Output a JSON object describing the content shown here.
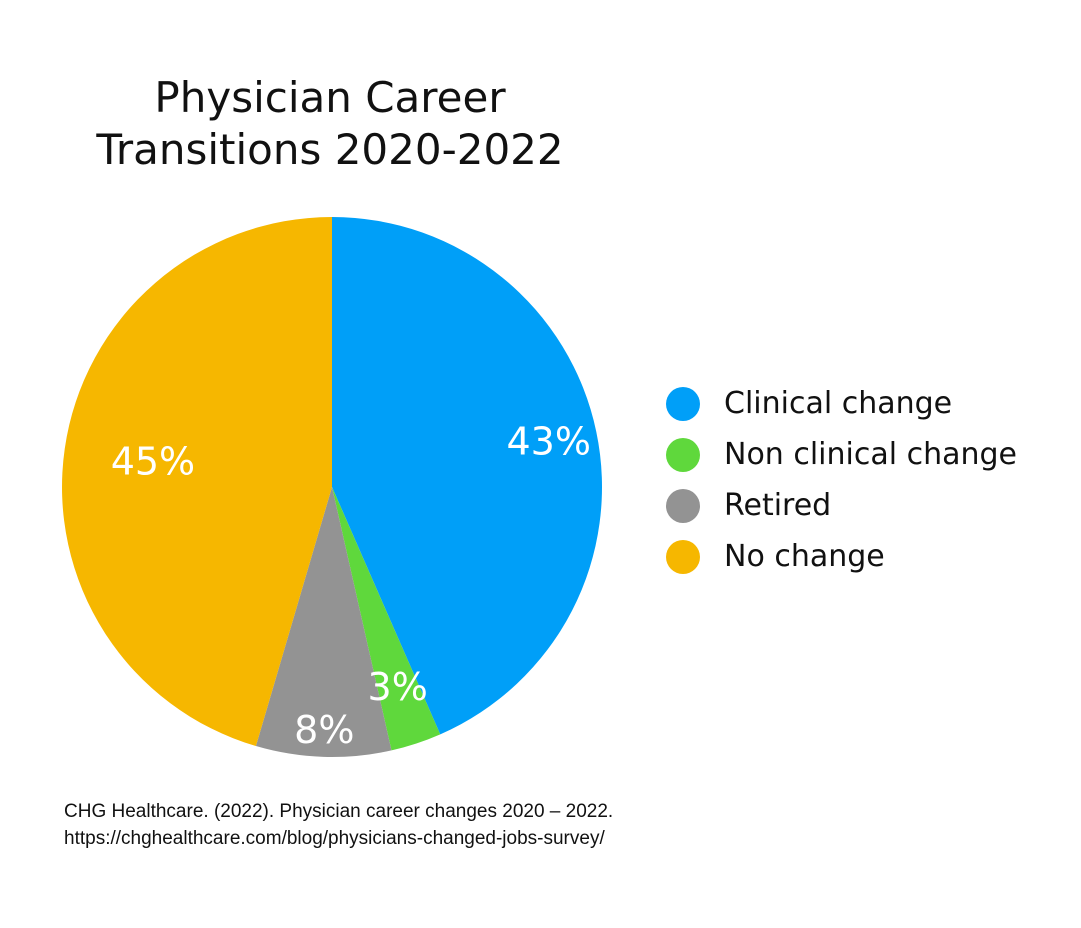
{
  "chart_data": {
    "type": "pie",
    "title_lines": [
      "Physician Career",
      "Transitions 2020-2022"
    ],
    "categories": [
      "Clinical change",
      "Non clinical change",
      "Retired",
      "No change"
    ],
    "values": [
      43,
      3,
      8,
      45
    ],
    "labels": [
      "43%",
      "3%",
      "8%",
      "45%"
    ],
    "colors": [
      "#009ff8",
      "#5fd83c",
      "#939393",
      "#f6b700"
    ],
    "label_color": "#ffffff",
    "legend_position": "right"
  },
  "source": {
    "text": "CHG Healthcare. (2022). Physician career changes 2020 – 2022. https://chghealthcare.com/blog/physicians-changed-jobs-survey/"
  }
}
